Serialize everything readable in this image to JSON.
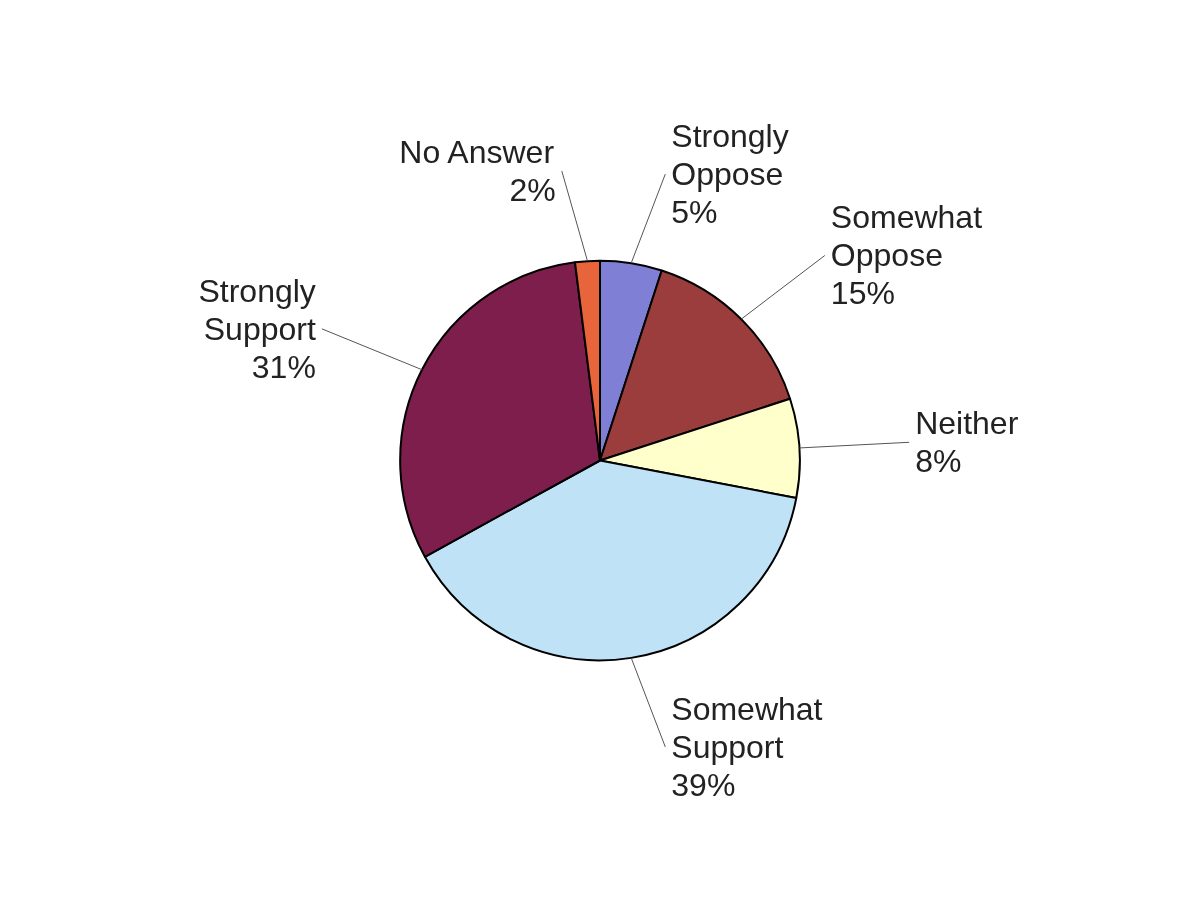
{
  "chart_data": {
    "type": "pie",
    "categories": [
      "Strongly Oppose",
      "Somewhat Oppose",
      "Neither",
      "Somewhat Support",
      "Strongly Support",
      "No Answer"
    ],
    "values": [
      5,
      15,
      8,
      39,
      31,
      2
    ],
    "colors": [
      "#7f7fd6",
      "#9c3d3d",
      "#ffffcc",
      "#c0e2f6",
      "#7d1e4c",
      "#e8653c"
    ],
    "value_labels": [
      "5%",
      "15%",
      "8%",
      "39%",
      "31%",
      "2%"
    ]
  }
}
